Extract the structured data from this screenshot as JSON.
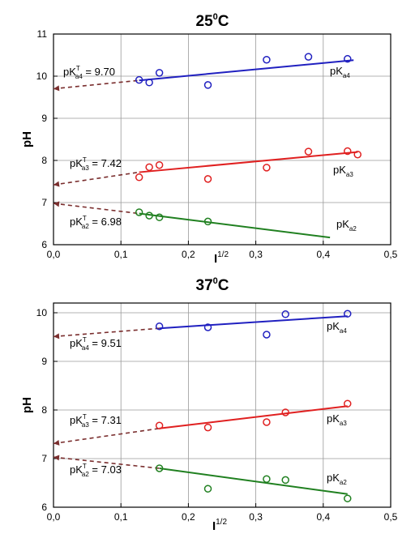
{
  "chart_data": [
    {
      "type": "scatter",
      "title": "25°C",
      "title_main": "25",
      "title_sup": "0",
      "title_unit": "C",
      "xlabel_main": "I",
      "xlabel_sup": "1/2",
      "ylabel": "pH",
      "xlim": [
        0.0,
        0.5
      ],
      "ylim": [
        6,
        11
      ],
      "xticks": [
        "0,0",
        "0,1",
        "0,2",
        "0,3",
        "0,4",
        "0,5"
      ],
      "yticks": [
        "6",
        "7",
        "8",
        "9",
        "10",
        "11"
      ],
      "grid": true,
      "series": [
        {
          "name": "pKa4",
          "label_base": "pK",
          "label_sub": "a4",
          "color": "#2020c0",
          "x": [
            0.127,
            0.142,
            0.157,
            0.229,
            0.316,
            0.378,
            0.436
          ],
          "y": [
            9.91,
            9.85,
            10.08,
            9.79,
            10.39,
            10.46,
            10.41
          ],
          "fit_x": [
            0.127,
            0.445
          ],
          "fit_y": [
            9.9,
            10.38
          ],
          "extrap_x": [
            0.0,
            0.127
          ],
          "extrap_y": [
            9.7,
            9.9
          ],
          "intercept_base": "pK",
          "intercept_sup": "T",
          "intercept_sub": "a4",
          "intercept_text": " = 9.70"
        },
        {
          "name": "pKa3",
          "label_base": "pK",
          "label_sub": "a3",
          "color": "#e02020",
          "x": [
            0.127,
            0.142,
            0.157,
            0.229,
            0.316,
            0.378,
            0.436,
            0.451
          ],
          "y": [
            7.6,
            7.84,
            7.89,
            7.56,
            7.83,
            8.21,
            8.22,
            8.14
          ],
          "fit_x": [
            0.127,
            0.451
          ],
          "fit_y": [
            7.72,
            8.2
          ],
          "extrap_x": [
            0.0,
            0.127
          ],
          "extrap_y": [
            7.42,
            7.72
          ],
          "intercept_base": "pK",
          "intercept_sup": "T",
          "intercept_sub": "a3",
          "intercept_text": " = 7.42"
        },
        {
          "name": "pKa2",
          "label_base": "pK",
          "label_sub": "a2",
          "color": "#208020",
          "x": [
            0.127,
            0.142,
            0.157,
            0.229
          ],
          "y": [
            6.77,
            6.69,
            6.65,
            6.55
          ],
          "fit_x": [
            0.127,
            0.41
          ],
          "fit_y": [
            6.74,
            6.17
          ],
          "extrap_x": [
            0.0,
            0.127
          ],
          "extrap_y": [
            6.98,
            6.74
          ],
          "intercept_base": "pK",
          "intercept_sup": "T",
          "intercept_sub": "a2",
          "intercept_text": " = 6.98"
        }
      ]
    },
    {
      "type": "scatter",
      "title": "37°C",
      "title_main": "37",
      "title_sup": "0",
      "title_unit": "C",
      "xlabel_main": "I",
      "xlabel_sup": "1/2",
      "ylabel": "pH",
      "xlim": [
        0.0,
        0.5
      ],
      "ylim": [
        6,
        10.2
      ],
      "xticks": [
        "0,0",
        "0,1",
        "0,2",
        "0,3",
        "0,4",
        "0,5"
      ],
      "yticks": [
        "6",
        "7",
        "8",
        "9",
        "10"
      ],
      "grid": true,
      "series": [
        {
          "name": "pKa4",
          "label_base": "pK",
          "label_sub": "a4",
          "color": "#2020c0",
          "x": [
            0.157,
            0.229,
            0.316,
            0.344,
            0.436
          ],
          "y": [
            9.72,
            9.7,
            9.55,
            9.97,
            9.98
          ],
          "fit_x": [
            0.157,
            0.436
          ],
          "fit_y": [
            9.68,
            9.93
          ],
          "extrap_x": [
            0.0,
            0.157
          ],
          "extrap_y": [
            9.51,
            9.68
          ],
          "intercept_base": "pK",
          "intercept_sup": "T",
          "intercept_sub": "a4",
          "intercept_text": " = 9.51"
        },
        {
          "name": "pKa3",
          "label_base": "pK",
          "label_sub": "a3",
          "color": "#e02020",
          "x": [
            0.157,
            0.229,
            0.316,
            0.344,
            0.436
          ],
          "y": [
            7.68,
            7.64,
            7.75,
            7.95,
            8.13
          ],
          "fit_x": [
            0.157,
            0.436
          ],
          "fit_y": [
            7.62,
            8.08
          ],
          "extrap_x": [
            0.0,
            0.157
          ],
          "extrap_y": [
            7.31,
            7.62
          ],
          "intercept_base": "pK",
          "intercept_sup": "T",
          "intercept_sub": "a3",
          "intercept_text": " = 7.31"
        },
        {
          "name": "pKa2",
          "label_base": "pK",
          "label_sub": "a2",
          "color": "#208020",
          "x": [
            0.157,
            0.229,
            0.316,
            0.344,
            0.436
          ],
          "y": [
            6.8,
            6.38,
            6.58,
            6.56,
            6.18
          ],
          "fit_x": [
            0.157,
            0.436
          ],
          "fit_y": [
            6.8,
            6.27
          ],
          "extrap_x": [
            0.0,
            0.157
          ],
          "extrap_y": [
            7.03,
            6.8
          ],
          "intercept_base": "pK",
          "intercept_sup": "T",
          "intercept_sub": "a2",
          "intercept_text": " = 7.03"
        }
      ]
    }
  ]
}
